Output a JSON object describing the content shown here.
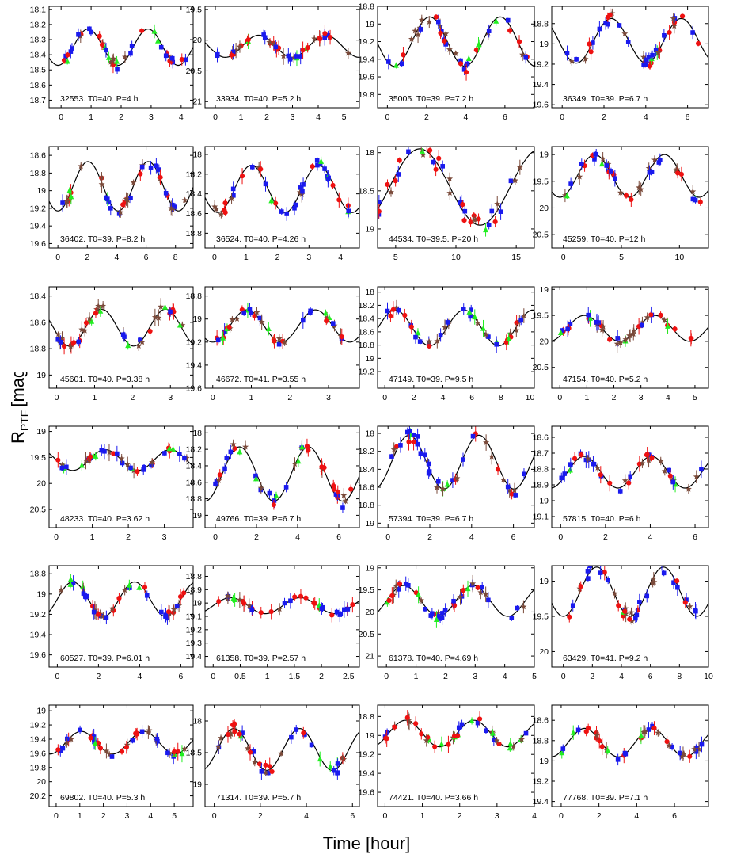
{
  "figure": {
    "ylabel_main": "R",
    "ylabel_sub": "PTF",
    "ylabel_unit": "[mag]",
    "xlabel": "Time [hour]"
  },
  "colors": {
    "red": "#ee1111",
    "blue": "#1a1aee",
    "green": "#22ee22",
    "brown": "#7a4a3a",
    "curve": "#000000"
  },
  "chart_data": [
    {
      "type": "scatter",
      "label": "32553. T0=40. P=4 h",
      "period": 4,
      "xlim": [
        -0.4,
        4.4
      ],
      "ylim": [
        18.08,
        18.75
      ],
      "amp": 0.12,
      "mean": 18.35,
      "phase": 0.3,
      "xticks": [
        0,
        1,
        2,
        3,
        4
      ],
      "yticks": [
        18.1,
        18.2,
        18.3,
        18.4,
        18.5,
        18.6,
        18.7
      ]
    },
    {
      "type": "scatter",
      "label": "33934. T0=40. P=5.2 h",
      "period": 5.2,
      "xlim": [
        -0.4,
        5.6
      ],
      "ylim": [
        19.45,
        21.1
      ],
      "amp": 0.18,
      "mean": 20.1,
      "phase": 0.1,
      "xticks": [
        0,
        1,
        2,
        3,
        4,
        5
      ],
      "yticks": [
        19.5,
        20,
        20.5,
        21
      ]
    },
    {
      "type": "scatter",
      "label": "35005. T0=39. P=7.2 h",
      "period": 7.2,
      "xlim": [
        -0.5,
        7.5
      ],
      "ylim": [
        18.8,
        19.95
      ],
      "amp": 0.28,
      "mean": 19.2,
      "phase": 0.15,
      "xticks": [
        0,
        2,
        4,
        6
      ],
      "yticks": [
        18.8,
        19,
        19.2,
        19.4,
        19.6,
        19.8
      ]
    },
    {
      "type": "scatter",
      "label": "36349. T0=39. P=6.7 h",
      "period": 6.7,
      "xlim": [
        -0.5,
        7
      ],
      "ylim": [
        18.63,
        19.63
      ],
      "amp": 0.22,
      "mean": 18.97,
      "phase": 0.05,
      "xticks": [
        0,
        2,
        4,
        6
      ],
      "yticks": [
        18.8,
        19,
        19.2,
        19.4,
        19.6
      ]
    },
    {
      "type": "scatter",
      "label": "36402. T0=39. P=8.2 h",
      "period": 8.2,
      "xlim": [
        -0.6,
        9.2
      ],
      "ylim": [
        18.5,
        19.65
      ],
      "amp": 0.28,
      "mean": 18.95,
      "phase": 0.25,
      "xticks": [
        0,
        2,
        4,
        6,
        8
      ],
      "yticks": [
        18.6,
        18.8,
        19,
        19.2,
        19.4,
        19.6
      ]
    },
    {
      "type": "scatter",
      "label": "36524. T0=40. P=4.26 h",
      "period": 4.26,
      "xlim": [
        -0.3,
        4.6
      ],
      "ylim": [
        17.92,
        18.95
      ],
      "amp": 0.24,
      "mean": 18.35,
      "phase": 0.2,
      "xticks": [
        0,
        1,
        2,
        3,
        4
      ],
      "yticks": [
        18,
        18.2,
        18.4,
        18.6,
        18.8
      ]
    },
    {
      "type": "scatter",
      "label": "44534. T0=39.5. P=20 h",
      "period": 20,
      "xlim": [
        3.5,
        16.5
      ],
      "ylim": [
        17.92,
        19.25
      ],
      "amp": 0.5,
      "mean": 18.45,
      "phase": 0.05,
      "xticks": [
        5,
        10,
        15
      ],
      "yticks": [
        18,
        18.5,
        19
      ]
    },
    {
      "type": "scatter",
      "label": "45259. T0=40. P=12 h",
      "period": 12,
      "xlim": [
        -1,
        12.5
      ],
      "ylim": [
        18.85,
        20.75
      ],
      "amp": 0.4,
      "mean": 19.4,
      "phase": 0.3,
      "xticks": [
        0,
        5,
        10
      ],
      "yticks": [
        19,
        19.5,
        20,
        20.5
      ]
    },
    {
      "type": "scatter",
      "label": "45601. T0=40. P=3.38 h",
      "period": 3.38,
      "xlim": [
        -0.2,
        3.6
      ],
      "ylim": [
        18.33,
        19.1
      ],
      "amp": 0.14,
      "mean": 18.64,
      "phase": 0.05,
      "xticks": [
        0,
        1,
        2,
        3
      ],
      "yticks": [
        18.4,
        18.6,
        18.8,
        19
      ]
    },
    {
      "type": "scatter",
      "label": "46672. T0=41. P=3.55 h",
      "period": 3.55,
      "xlim": [
        -0.2,
        3.8
      ],
      "ylim": [
        18.72,
        19.6
      ],
      "amp": 0.14,
      "mean": 19.06,
      "phase": 0.25,
      "xticks": [
        0,
        1,
        2,
        3
      ],
      "yticks": [
        18.8,
        19,
        19.2,
        19.4,
        19.6
      ]
    },
    {
      "type": "scatter",
      "label": "47149. T0=39. P=9.5 h",
      "period": 9.5,
      "xlim": [
        -0.5,
        10.3
      ],
      "ylim": [
        17.92,
        19.45
      ],
      "amp": 0.27,
      "mean": 18.54,
      "phase": 0.6,
      "xticks": [
        0,
        2,
        4,
        6,
        8,
        10
      ],
      "yticks": [
        18,
        18.2,
        18.4,
        18.6,
        18.8,
        19,
        19.2
      ]
    },
    {
      "type": "scatter",
      "label": "47154. T0=40. P=5.2 h",
      "period": 5.2,
      "xlim": [
        -0.3,
        5.5
      ],
      "ylim": [
        18.95,
        20.9
      ],
      "amp": 0.25,
      "mean": 19.75,
      "phase": 0.4,
      "xticks": [
        0,
        1,
        2,
        3,
        4,
        5
      ],
      "yticks": [
        19,
        19.5,
        20,
        20.5
      ]
    },
    {
      "type": "scatter",
      "label": "48233. T0=40. P=3.62 h",
      "period": 3.62,
      "xlim": [
        -0.2,
        3.8
      ],
      "ylim": [
        18.9,
        20.85
      ],
      "amp": 0.2,
      "mean": 19.55,
      "phase": 0.0,
      "xticks": [
        0,
        1,
        2,
        3
      ],
      "yticks": [
        19,
        19.5,
        20,
        20.5
      ]
    },
    {
      "type": "scatter",
      "label": "49766. T0=39. P=6.7 h",
      "period": 6.7,
      "xlim": [
        -0.5,
        7
      ],
      "ylim": [
        17.92,
        19.15
      ],
      "amp": 0.33,
      "mean": 18.5,
      "phase": 0.4,
      "xticks": [
        0,
        2,
        4,
        6
      ],
      "yticks": [
        18,
        18.2,
        18.4,
        18.6,
        18.8,
        19
      ]
    },
    {
      "type": "scatter",
      "label": "57394. T0=39. P=6.7 h",
      "period": 6.7,
      "xlim": [
        -0.5,
        7
      ],
      "ylim": [
        17.92,
        19.05
      ],
      "amp": 0.3,
      "mean": 18.32,
      "phase": 0.45,
      "xticks": [
        0,
        2,
        4,
        6
      ],
      "yticks": [
        18,
        18.2,
        18.4,
        18.6,
        18.8,
        19
      ]
    },
    {
      "type": "scatter",
      "label": "57815. T0=40. P=6 h",
      "period": 6,
      "xlim": [
        -0.4,
        6.6
      ],
      "ylim": [
        18.53,
        19.17
      ],
      "amp": 0.1,
      "mean": 18.82,
      "phase": 0.4,
      "xticks": [
        0,
        2,
        4,
        6
      ],
      "yticks": [
        18.6,
        18.7,
        18.8,
        18.9,
        19,
        19.1
      ]
    },
    {
      "type": "scatter",
      "label": "60527. T0=39. P=6.01 h",
      "period": 6.01,
      "xlim": [
        -0.4,
        6.6
      ],
      "ylim": [
        18.72,
        19.72
      ],
      "amp": 0.17,
      "mean": 19.05,
      "phase": 0.5,
      "xticks": [
        0,
        2,
        4,
        6
      ],
      "yticks": [
        18.8,
        19,
        19.2,
        19.4,
        19.6
      ]
    },
    {
      "type": "scatter",
      "label": "61358. T0=39. P=2.57 h",
      "period": 2.57,
      "xlim": [
        -0.15,
        2.7
      ],
      "ylim": [
        18.72,
        19.48
      ],
      "amp": 0.06,
      "mean": 19.02,
      "phase": 0.5,
      "xticks": [
        0,
        0.5,
        1,
        1.5,
        2,
        2.5
      ],
      "yticks": [
        18.8,
        18.9,
        19,
        19.1,
        19.2,
        19.3,
        19.4
      ]
    },
    {
      "type": "scatter",
      "label": "61378. T0=40. P=4.69 h",
      "period": 4.69,
      "xlim": [
        -0.3,
        5
      ],
      "ylim": [
        18.95,
        21.25
      ],
      "amp": 0.35,
      "mean": 19.75,
      "phase": 0.5,
      "xticks": [
        0,
        1,
        2,
        3,
        4,
        5
      ],
      "yticks": [
        19,
        19.5,
        20,
        20.5,
        21
      ]
    },
    {
      "type": "scatter",
      "label": "63429. T0=41. P=9.2 h",
      "period": 9.2,
      "xlim": [
        -0.8,
        10
      ],
      "ylim": [
        18.78,
        20.22
      ],
      "amp": 0.35,
      "mean": 19.15,
      "phase": 0.25,
      "xticks": [
        0,
        2,
        4,
        6,
        8,
        10
      ],
      "yticks": [
        19,
        19.5,
        20
      ]
    },
    {
      "type": "scatter",
      "label": "69802. T0=40. P=5.3 h",
      "period": 5.3,
      "xlim": [
        -0.3,
        5.8
      ],
      "ylim": [
        18.92,
        20.35
      ],
      "amp": 0.16,
      "mean": 19.45,
      "phase": 0.35,
      "xticks": [
        0,
        1,
        2,
        3,
        4,
        5
      ],
      "yticks": [
        19,
        19.2,
        19.4,
        19.6,
        19.8,
        20,
        20.2
      ]
    },
    {
      "type": "scatter",
      "label": "71314. T0=39. P=5.7 h",
      "period": 5.7,
      "xlim": [
        -0.4,
        6.3
      ],
      "ylim": [
        17.75,
        19.35
      ],
      "amp": 0.33,
      "mean": 18.45,
      "phase": 0.45,
      "xticks": [
        0,
        2,
        4,
        6
      ],
      "yticks": [
        18,
        18.5,
        19
      ]
    },
    {
      "type": "scatter",
      "label": "74421. T0=40. P=3.66 h",
      "period": 3.66,
      "xlim": [
        -0.2,
        4
      ],
      "ylim": [
        18.68,
        19.75
      ],
      "amp": 0.14,
      "mean": 18.98,
      "phase": 0.45,
      "xticks": [
        0,
        1,
        2,
        3,
        4
      ],
      "yticks": [
        18.8,
        19,
        19.2,
        19.4,
        19.6
      ]
    },
    {
      "type": "scatter",
      "label": "77768. T0=39. P=7.1 h",
      "period": 7.1,
      "xlim": [
        -0.5,
        7.8
      ],
      "ylim": [
        18.45,
        19.45
      ],
      "amp": 0.14,
      "mean": 18.82,
      "phase": 0.4,
      "xticks": [
        0,
        2,
        4,
        6
      ],
      "yticks": [
        18.6,
        18.8,
        19,
        19.2,
        19.4
      ]
    }
  ]
}
